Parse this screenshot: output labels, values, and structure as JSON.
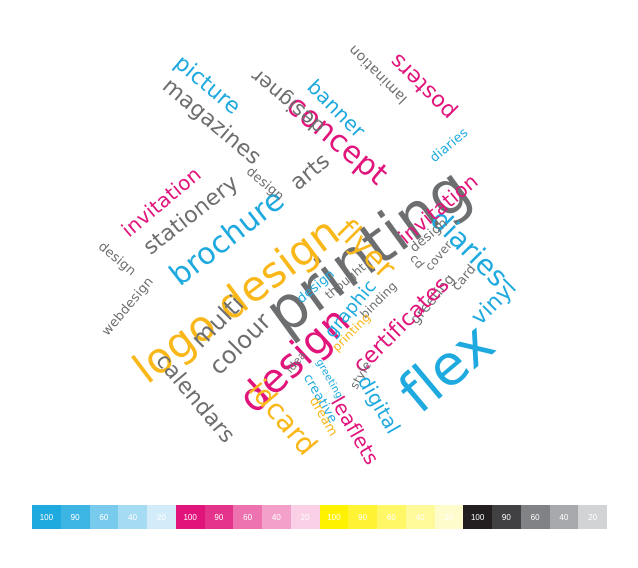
{
  "palette": {
    "cyan": "#1ea9df",
    "magenta": "#e1147b",
    "yellow": "#f9b71a",
    "gray": "#6d6e70"
  },
  "words": [
    {
      "text": "printing",
      "color": "gray"
    },
    {
      "text": "logo design",
      "color": "yellow"
    },
    {
      "text": "design",
      "color": "magenta"
    },
    {
      "text": "flex",
      "color": "cyan"
    },
    {
      "text": "concept",
      "color": "magenta"
    },
    {
      "text": "brochure",
      "color": "cyan"
    },
    {
      "text": "diaries",
      "color": "cyan"
    },
    {
      "text": "picture",
      "color": "cyan"
    },
    {
      "text": "magazines",
      "color": "gray"
    },
    {
      "text": "designer",
      "color": "gray"
    },
    {
      "text": "banner",
      "color": "cyan"
    },
    {
      "text": "lamination",
      "color": "gray"
    },
    {
      "text": "posters",
      "color": "magenta"
    },
    {
      "text": "diaries",
      "color": "cyan"
    },
    {
      "text": "invitation",
      "color": "magenta"
    },
    {
      "text": "stationery",
      "color": "gray"
    },
    {
      "text": "design",
      "color": "gray"
    },
    {
      "text": "arts",
      "color": "gray"
    },
    {
      "text": "flyer",
      "color": "yellow"
    },
    {
      "text": "invitation",
      "color": "magenta"
    },
    {
      "text": "design",
      "color": "gray"
    },
    {
      "text": "cd",
      "color": "gray"
    },
    {
      "text": "cover",
      "color": "gray"
    },
    {
      "text": "card",
      "color": "gray"
    },
    {
      "text": "greeting",
      "color": "gray"
    },
    {
      "text": "vinyl",
      "color": "cyan"
    },
    {
      "text": "design",
      "color": "gray"
    },
    {
      "text": "webdesign",
      "color": "gray"
    },
    {
      "text": "multi",
      "color": "gray"
    },
    {
      "text": "colour",
      "color": "gray"
    },
    {
      "text": "calendars",
      "color": "gray"
    },
    {
      "text": "idcard",
      "color": "yellow"
    },
    {
      "text": "design",
      "color": "cyan"
    },
    {
      "text": "thought",
      "color": "gray"
    },
    {
      "text": "graphic",
      "color": "cyan"
    },
    {
      "text": "binding",
      "color": "gray"
    },
    {
      "text": "printing",
      "color": "yellow"
    },
    {
      "text": "certificates",
      "color": "magenta"
    },
    {
      "text": "idea",
      "color": "gray"
    },
    {
      "text": "style",
      "color": "gray"
    },
    {
      "text": "greeting",
      "color": "cyan"
    },
    {
      "text": "creative",
      "color": "cyan"
    },
    {
      "text": "dream",
      "color": "yellow"
    },
    {
      "text": "digital",
      "color": "cyan"
    },
    {
      "text": "leaflets",
      "color": "magenta"
    }
  ],
  "color_bar": [
    {
      "label": "100",
      "bg": "#1ea9df",
      "fg": "#ffffff"
    },
    {
      "label": "90",
      "bg": "#3db5e4",
      "fg": "#ffffff"
    },
    {
      "label": "60",
      "bg": "#79cbee",
      "fg": "#ffffff"
    },
    {
      "label": "40",
      "bg": "#a5dbf3",
      "fg": "#ffffff"
    },
    {
      "label": "20",
      "bg": "#d2edf9",
      "fg": "#ffffff"
    },
    {
      "label": "100",
      "bg": "#e1147b",
      "fg": "#ffffff"
    },
    {
      "label": "90",
      "bg": "#e4338b",
      "fg": "#ffffff"
    },
    {
      "label": "60",
      "bg": "#ed72b0",
      "fg": "#ffffff"
    },
    {
      "label": "40",
      "bg": "#f3a1ca",
      "fg": "#ffffff"
    },
    {
      "label": "20",
      "bg": "#f9d0e5",
      "fg": "#ffffff"
    },
    {
      "label": "100",
      "bg": "#fff200",
      "fg": "#ffffff"
    },
    {
      "label": "90",
      "bg": "#fff333",
      "fg": "#ffffff"
    },
    {
      "label": "60",
      "bg": "#fff766",
      "fg": "#ffffff"
    },
    {
      "label": "40",
      "bg": "#fffa99",
      "fg": "#ffffff"
    },
    {
      "label": "20",
      "bg": "#fffccc",
      "fg": "#ffffff"
    },
    {
      "label": "100",
      "bg": "#231f20",
      "fg": "#ffffff"
    },
    {
      "label": "90",
      "bg": "#414042",
      "fg": "#ffffff"
    },
    {
      "label": "60",
      "bg": "#808285",
      "fg": "#ffffff"
    },
    {
      "label": "40",
      "bg": "#a7a9ac",
      "fg": "#ffffff"
    },
    {
      "label": "20",
      "bg": "#d1d3d4",
      "fg": "#ffffff"
    }
  ]
}
